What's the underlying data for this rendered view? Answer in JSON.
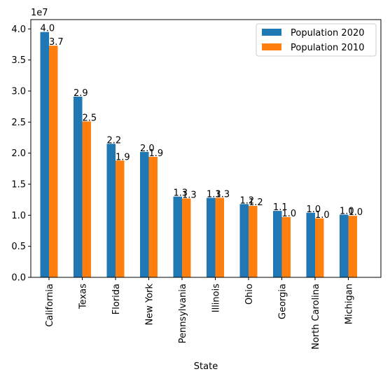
{
  "chart_data": {
    "type": "bar",
    "title": "",
    "xlabel": "State",
    "ylabel": "",
    "y_offset_label": "1e7",
    "ylim": [
      0,
      4.15
    ],
    "y_ticks": [
      "0.0",
      "0.5",
      "1.0",
      "1.5",
      "2.0",
      "2.5",
      "3.0",
      "3.5",
      "4.0"
    ],
    "categories": [
      "California",
      "Texas",
      "Florida",
      "New York",
      "Pennsylvania",
      "Illinois",
      "Ohio",
      "Georgia",
      "North Carolina",
      "Michigan"
    ],
    "series": [
      {
        "name": "Population 2020",
        "color": "#1f77b4",
        "values": [
          3.95,
          2.91,
          2.15,
          2.02,
          1.3,
          1.28,
          1.18,
          1.07,
          1.04,
          1.01
        ],
        "labels": [
          "4.0",
          "2.9",
          "2.2",
          "2.0",
          "1.3",
          "1.3",
          "1.2",
          "1.1",
          "1.0",
          "1.0"
        ]
      },
      {
        "name": "Population 2010",
        "color": "#ff7f0e",
        "values": [
          3.73,
          2.51,
          1.88,
          1.94,
          1.27,
          1.28,
          1.15,
          0.97,
          0.95,
          0.99
        ],
        "labels": [
          "3.7",
          "2.5",
          "1.9",
          "1.9",
          "1.3",
          "1.3",
          "1.2",
          "1.0",
          "1.0",
          "1.0"
        ]
      }
    ],
    "grid": false,
    "legend_position": "top-right"
  }
}
